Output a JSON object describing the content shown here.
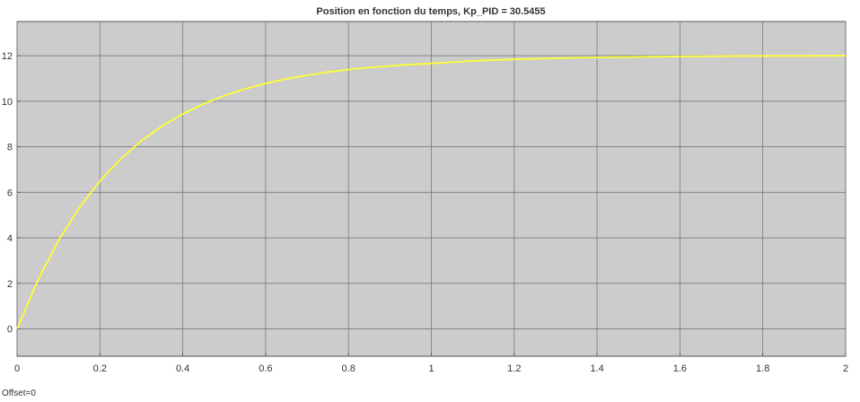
{
  "chart_data": {
    "type": "line",
    "title": "Position en fonction du temps, Kp_PID = 30.5455",
    "xlabel": "",
    "ylabel": "",
    "xlim": [
      0,
      2
    ],
    "ylim": [
      -1.2,
      13.5
    ],
    "xticks": [
      0,
      0.2,
      0.4,
      0.6,
      0.8,
      1,
      1.2,
      1.4,
      1.6,
      1.8,
      2
    ],
    "xtick_labels": [
      "0",
      "0.2",
      "0.4",
      "0.6",
      "0.8",
      "1",
      "1.2",
      "1.4",
      "1.6",
      "1.8",
      "2"
    ],
    "yticks": [
      0,
      2,
      4,
      6,
      8,
      10,
      12
    ],
    "ytick_labels": [
      "0",
      "2",
      "4",
      "6",
      "8",
      "10",
      "12"
    ],
    "grid": true,
    "legend": false,
    "background_color": "#cccccc",
    "grid_color": "#7a7a7a",
    "series": [
      {
        "color": "#ffff33",
        "x": [
          0,
          0.05,
          0.1,
          0.15,
          0.2,
          0.25,
          0.3,
          0.35,
          0.4,
          0.45,
          0.5,
          0.55,
          0.6,
          0.65,
          0.7,
          0.75,
          0.8,
          0.85,
          0.9,
          0.95,
          1.0,
          1.1,
          1.2,
          1.3,
          1.4,
          1.5,
          1.6,
          1.7,
          1.8,
          1.9,
          2.0
        ],
        "y": [
          0,
          2.13,
          3.88,
          5.32,
          6.5,
          7.46,
          8.26,
          8.91,
          9.44,
          9.88,
          10.24,
          10.54,
          10.78,
          10.98,
          11.14,
          11.28,
          11.39,
          11.48,
          11.55,
          11.61,
          11.66,
          11.77,
          11.84,
          11.89,
          11.93,
          11.95,
          11.97,
          11.98,
          11.99,
          11.99,
          12.0
        ]
      }
    ]
  },
  "footer": {
    "offset_label": "Offset=0"
  }
}
